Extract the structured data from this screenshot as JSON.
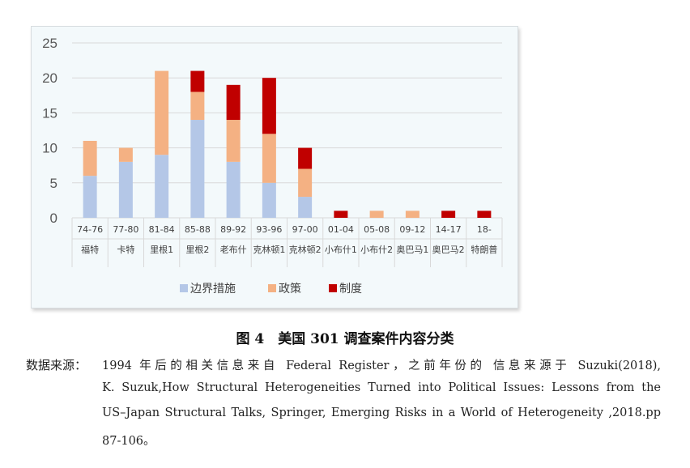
{
  "chart_data": {
    "type": "bar",
    "stacked": true,
    "categories": [
      {
        "top": "74-76",
        "bottom": "福特"
      },
      {
        "top": "77-80",
        "bottom": "卡特"
      },
      {
        "top": "81-84",
        "bottom": "里根1"
      },
      {
        "top": "85-88",
        "bottom": "里根2"
      },
      {
        "top": "89-92",
        "bottom": "老布什"
      },
      {
        "top": "93-96",
        "bottom": "克林顿1"
      },
      {
        "top": "97-00",
        "bottom": "克林顿2"
      },
      {
        "top": "01-04",
        "bottom": "小布什1"
      },
      {
        "top": "05-08",
        "bottom": "小布什2"
      },
      {
        "top": "09-12",
        "bottom": "奥巴马1"
      },
      {
        "top": "14-17",
        "bottom": "奥巴马2"
      },
      {
        "top": "18-",
        "bottom": "特朗普"
      }
    ],
    "series": [
      {
        "name": "边界措施",
        "color": "#b4c7e7",
        "values": [
          6,
          8,
          9,
          14,
          8,
          5,
          3,
          0,
          0,
          0,
          0,
          0
        ]
      },
      {
        "name": "政策",
        "color": "#f4b183",
        "values": [
          5,
          2,
          12,
          4,
          6,
          7,
          4,
          0,
          1,
          1,
          0,
          0
        ]
      },
      {
        "name": "制度",
        "color": "#c00000",
        "values": [
          0,
          0,
          0,
          3,
          5,
          8,
          3,
          1,
          0,
          0,
          1,
          1
        ]
      }
    ],
    "ylim": [
      0,
      25
    ],
    "yticks": [
      0,
      5,
      10,
      15,
      20,
      25
    ],
    "grid": true,
    "legend": "bottom"
  },
  "caption": "图 4　美国 301 调查案件内容分类",
  "source": {
    "label": "数据来源：",
    "lines": [
      "1994 年后的相关信息来自 Federal Register，之前年份的 信息来源于 Suzuki(2018),",
      "K. Suzuk,How Structural Heterogeneities Turned into Political Issues: Lessons from the",
      "US–Japan Structural Talks, Springer, Emerging Risks in a World of Heterogeneity ,2018.pp",
      "87-106。"
    ]
  }
}
